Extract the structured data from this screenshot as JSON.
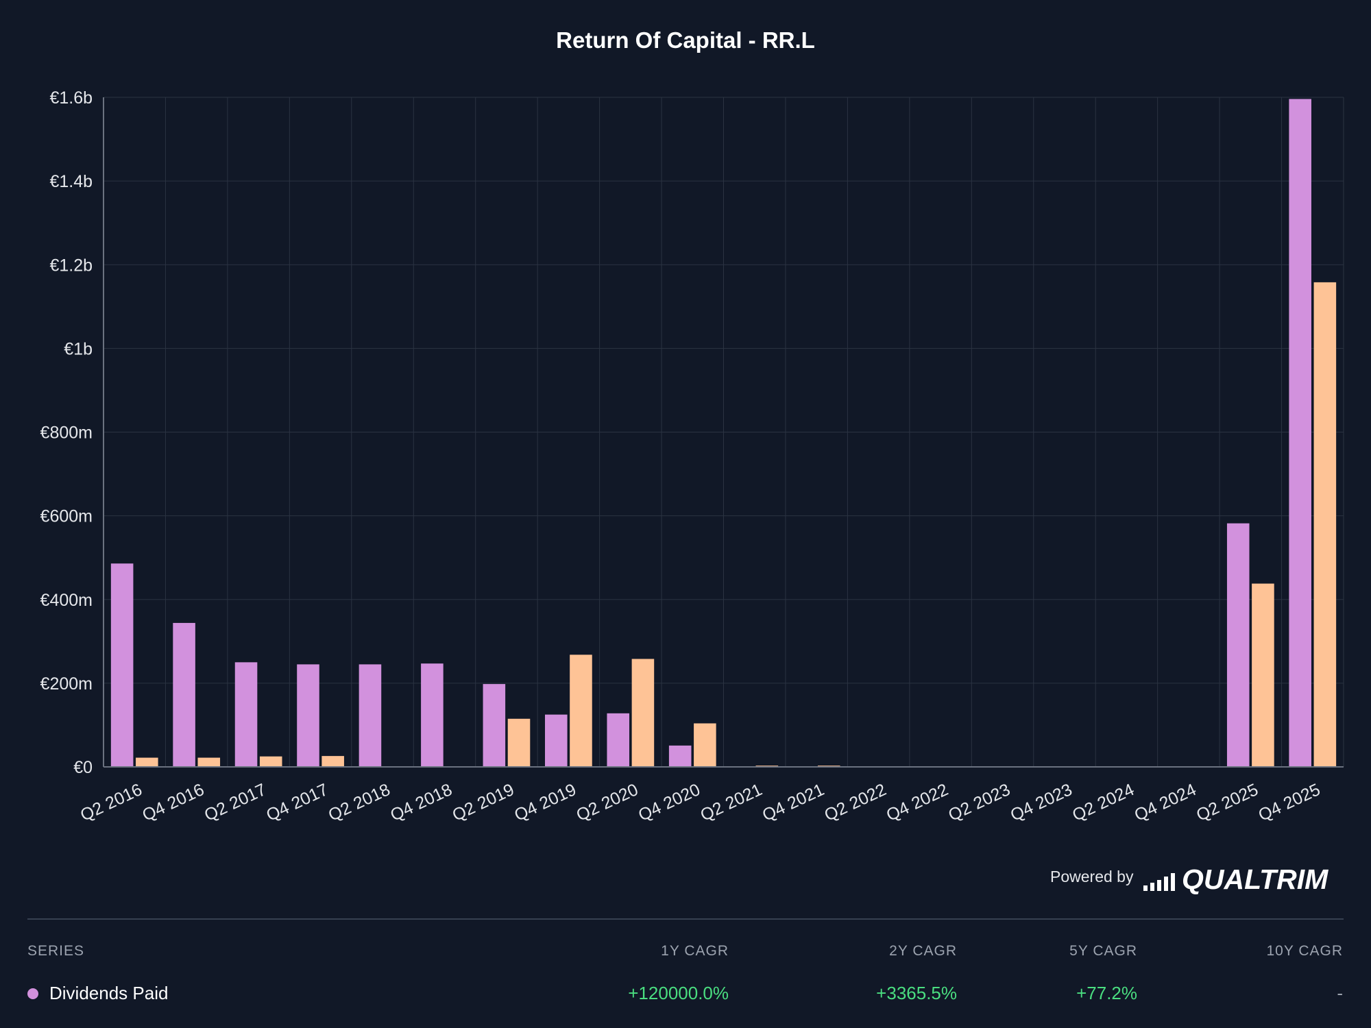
{
  "chart_data": {
    "type": "bar",
    "title": "Return Of Capital - RR.L",
    "x": [
      "Q2 2016",
      "Q4 2016",
      "Q2 2017",
      "Q4 2017",
      "Q2 2018",
      "Q4 2018",
      "Q2 2019",
      "Q4 2019",
      "Q2 2020",
      "Q4 2020",
      "Q2 2021",
      "Q4 2021",
      "Q2 2022",
      "Q4 2022",
      "Q2 2023",
      "Q4 2023",
      "Q2 2024",
      "Q4 2024",
      "Q2 2025",
      "Q4 2025"
    ],
    "tick_labels": [
      "Q2 2016",
      "Q4 2016",
      "Q2 2017",
      "Q4 2017",
      "Q2 2018",
      "Q4 2018",
      "Q2 2019",
      "Q4 2019",
      "Q2 2020",
      "Q4 2020",
      "Q2 2021",
      "Q4 2021",
      "Q2 2022",
      "Q4 2022",
      "Q2 2023",
      "Q4 2023",
      "Q2 2024",
      "Q4 2024",
      "Q2 2025",
      "Q4 2025"
    ],
    "series": [
      {
        "name": "Dividends Paid",
        "color": "#d291dd",
        "values": [
          486,
          344,
          250,
          245,
          245,
          247,
          198,
          125,
          128,
          51,
          0,
          0,
          1,
          1,
          0,
          0,
          0,
          0,
          582,
          1596
        ]
      },
      {
        "color": "#fec396",
        "values": [
          22,
          22,
          25,
          26,
          1,
          0,
          115,
          268,
          258,
          104,
          3,
          3,
          1,
          1,
          1,
          1,
          1,
          1,
          438,
          1158
        ]
      }
    ],
    "ylim": [
      0,
      1600
    ],
    "yticks": [
      0,
      200,
      400,
      600,
      800,
      1000,
      1200,
      1400,
      1600
    ],
    "ytick_labels": [
      "€0",
      "€200m",
      "€400m",
      "€600m",
      "€800m",
      "€1b",
      "€1.2b",
      "€1.4b",
      "€1.6b"
    ],
    "grid": true,
    "legend": "none"
  },
  "footer": {
    "powered_by": "Powered by",
    "brand": "QUALTRIM"
  },
  "table": {
    "headers": [
      "SERIES",
      "1Y CAGR",
      "2Y CAGR",
      "5Y CAGR",
      "10Y CAGR"
    ],
    "rows": [
      {
        "series": "Dividends Paid",
        "cagr_1y": "+120000.0%",
        "cagr_2y": "+3365.5%",
        "cagr_5y": "+77.2%",
        "cagr_10y": "-"
      }
    ]
  }
}
